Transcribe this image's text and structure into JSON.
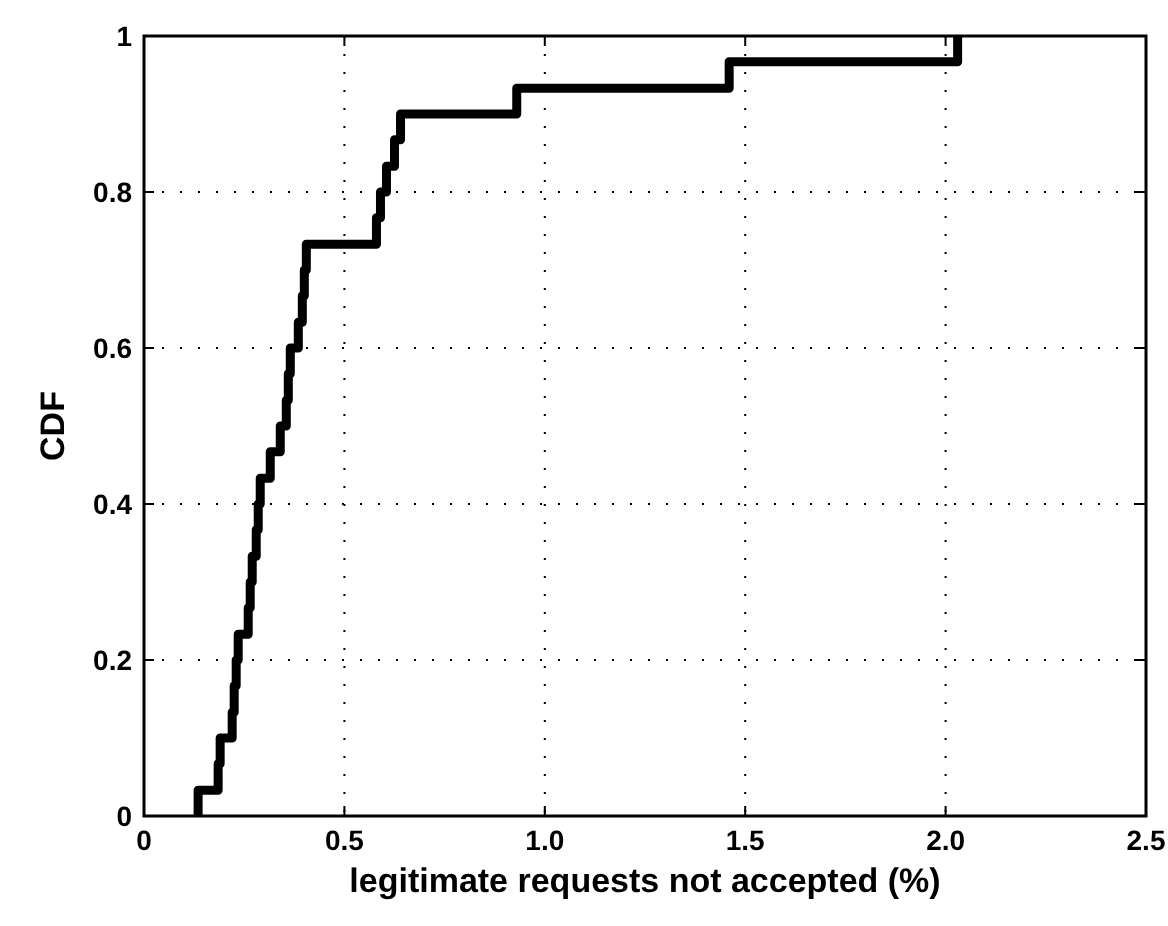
{
  "chart_data": {
    "type": "step",
    "xlabel": "legitimate requests not accepted (%)",
    "ylabel": "CDF",
    "x": [
      0.135,
      0.135,
      0.185,
      0.19,
      0.22,
      0.225,
      0.23,
      0.235,
      0.26,
      0.265,
      0.27,
      0.28,
      0.285,
      0.29,
      0.315,
      0.34,
      0.355,
      0.36,
      0.365,
      0.385,
      0.395,
      0.4,
      0.405,
      0.58,
      0.59,
      0.605,
      0.625,
      0.64,
      0.93,
      1.46,
      2.03
    ],
    "series": [
      {
        "color": "#000000",
        "values": [
          0,
          0.033,
          0.067,
          0.1,
          0.133,
          0.167,
          0.2,
          0.233,
          0.267,
          0.3,
          0.333,
          0.367,
          0.4,
          0.433,
          0.467,
          0.5,
          0.533,
          0.567,
          0.6,
          0.633,
          0.667,
          0.7,
          0.733,
          0.767,
          0.8,
          0.833,
          0.867,
          0.9,
          0.933,
          0.967,
          1
        ]
      }
    ],
    "xlim": [
      0,
      2.5
    ],
    "ylim": [
      0,
      1
    ],
    "xticks": [
      0,
      0.5,
      {
        "value": 1,
        "label": "1.0"
      },
      1.5,
      {
        "value": 2,
        "label": "2.0"
      },
      2.5
    ],
    "yticks": [
      0,
      0.2,
      0.4,
      0.6,
      0.8,
      1
    ],
    "grid": true,
    "line_style": "solid"
  }
}
